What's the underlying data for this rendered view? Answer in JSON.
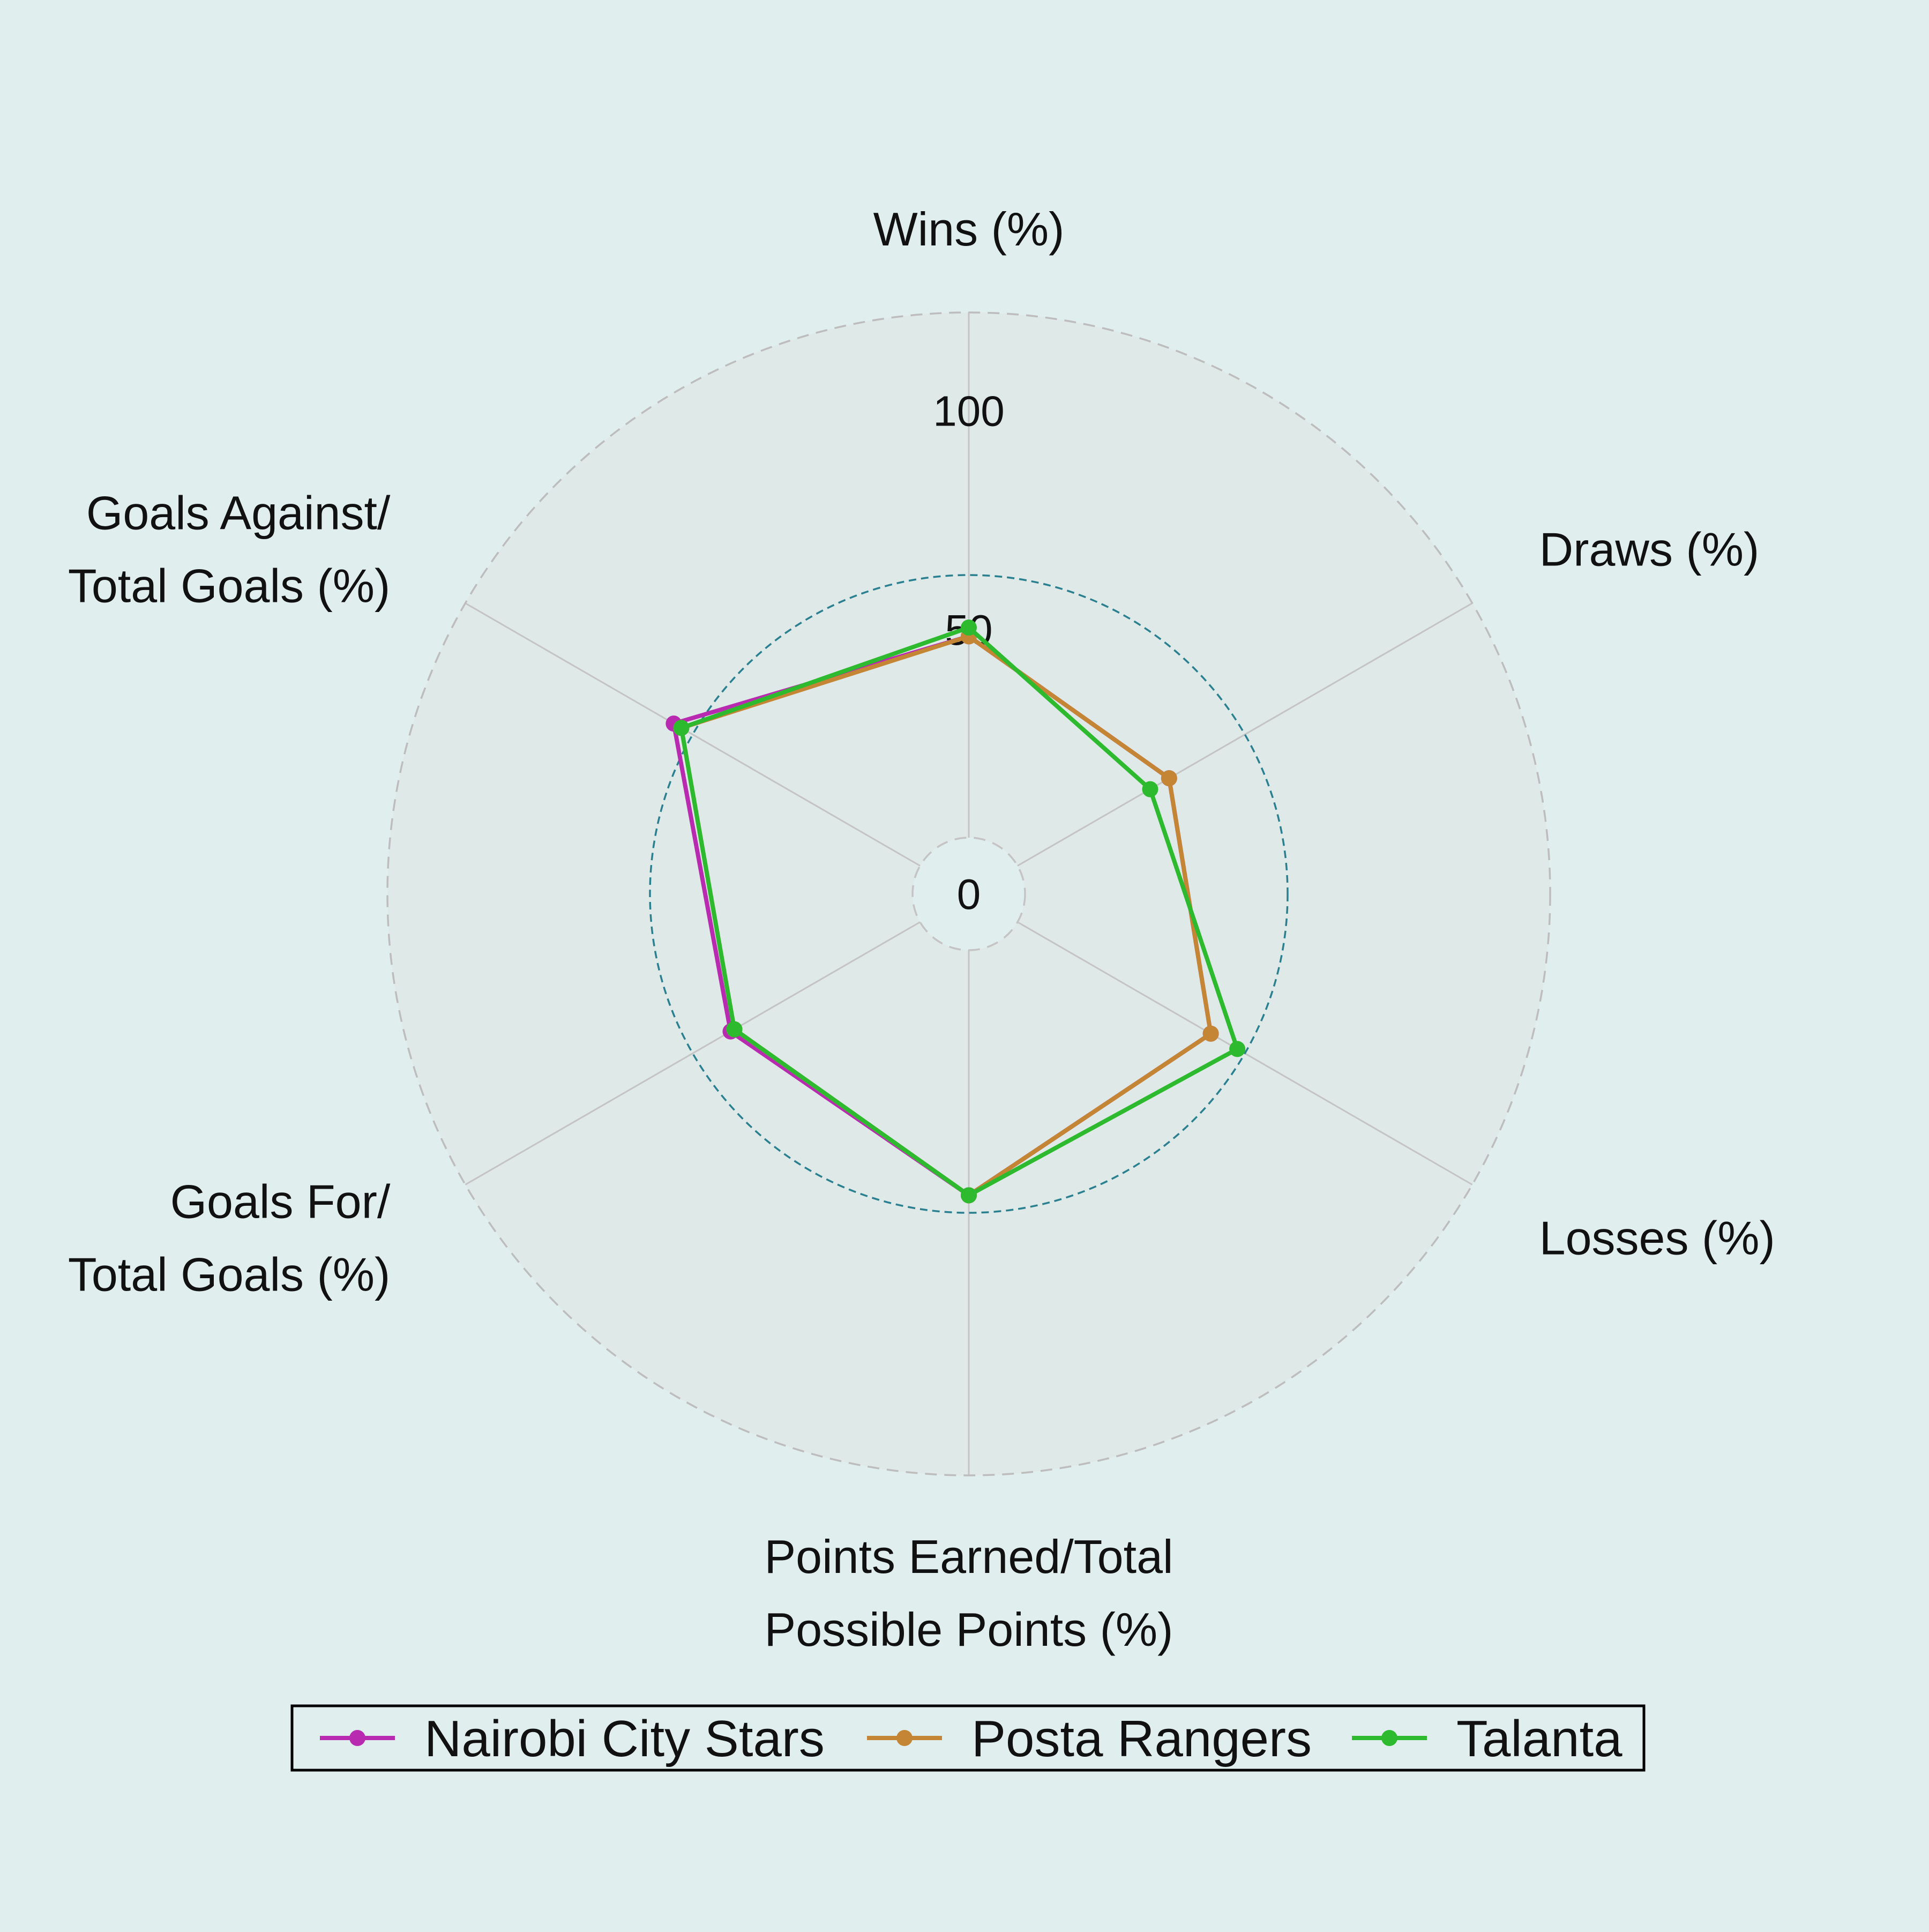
{
  "chart_data": {
    "type": "radar",
    "axes": [
      "Wins (%)",
      "Draws (%)",
      "Losses (%)",
      "Points Earned/Total Possible Points (%)",
      "Goals For/ Total Goals (%)",
      "Goals Against/ Total Goals (%)"
    ],
    "axis_label_lines": [
      [
        "Wins (%)"
      ],
      [
        "Draws (%)"
      ],
      [
        "Losses (%)"
      ],
      [
        "Points Earned/Total",
        "Possible Points (%)"
      ],
      [
        "Goals For/",
        "Total Goals (%)"
      ],
      [
        "Goals Against/",
        "Total Goals (%)"
      ]
    ],
    "radial_ticks": [
      0,
      50,
      100
    ],
    "radial_range": [
      -10,
      110
    ],
    "series": [
      {
        "name": "Nairobi City Stars",
        "color": "#b82bb0",
        "values": [
          36,
          30,
          41,
          46,
          40,
          55
        ]
      },
      {
        "name": "Posta Rangers",
        "color": "#c48534",
        "values": [
          36,
          30,
          41,
          46,
          39,
          53
        ]
      },
      {
        "name": "Talanta",
        "color": "#2dba2f",
        "values": [
          38,
          25,
          48,
          46,
          39,
          53
        ]
      }
    ],
    "grid": true,
    "legend_position": "bottom"
  }
}
